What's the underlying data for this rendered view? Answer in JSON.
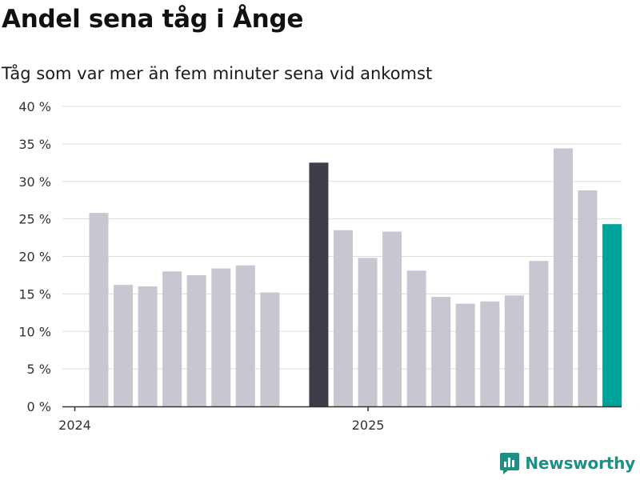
{
  "header": {
    "title": "Andel sena tåg i Ånge",
    "subtitle": "Tåg som var mer än fem minuter sena vid ankomst"
  },
  "brand": {
    "name": "Newsworthy"
  },
  "colors": {
    "bar_default": "#c8c7d1",
    "bar_highlight_dark": "#3d3c48",
    "bar_highlight_current": "#00a39a",
    "grid": "#dddddd",
    "axis": "#333333",
    "brand": "#1f8f86"
  },
  "chart_data": {
    "type": "bar",
    "title": "Andel sena tåg i Ånge",
    "subtitle": "Tåg som var mer än fem minuter sena vid ankomst",
    "xlabel": "",
    "ylabel": "",
    "ylim": [
      0,
      40
    ],
    "yticks": [
      0,
      5,
      10,
      15,
      20,
      25,
      30,
      35,
      40
    ],
    "ytick_labels": [
      "0 %",
      "5 %",
      "10 %",
      "15 %",
      "20 %",
      "25 %",
      "30 %",
      "35 %",
      "40 %"
    ],
    "grid": true,
    "x_tick_labels": [
      {
        "label": "2024",
        "index": 0
      },
      {
        "label": "2025",
        "index": 12
      }
    ],
    "categories": [
      "2024-01",
      "2024-02",
      "2024-03",
      "2024-04",
      "2024-05",
      "2024-06",
      "2024-07",
      "2024-08",
      "2024-09",
      "2024-10",
      "2024-11",
      "2024-12",
      "2025-01",
      "2025-02",
      "2025-03",
      "2025-04",
      "2025-05",
      "2025-06",
      "2025-07",
      "2025-08",
      "2025-09",
      "2025-10"
    ],
    "values": [
      25.8,
      16.2,
      16.0,
      18.0,
      17.5,
      18.4,
      18.8,
      15.2,
      0,
      32.5,
      23.5,
      19.8,
      23.3,
      18.1,
      14.6,
      13.7,
      14.0,
      14.8,
      19.4,
      34.4,
      28.8,
      24.3
    ],
    "highlight": {
      "9": "dark",
      "21": "current"
    }
  }
}
